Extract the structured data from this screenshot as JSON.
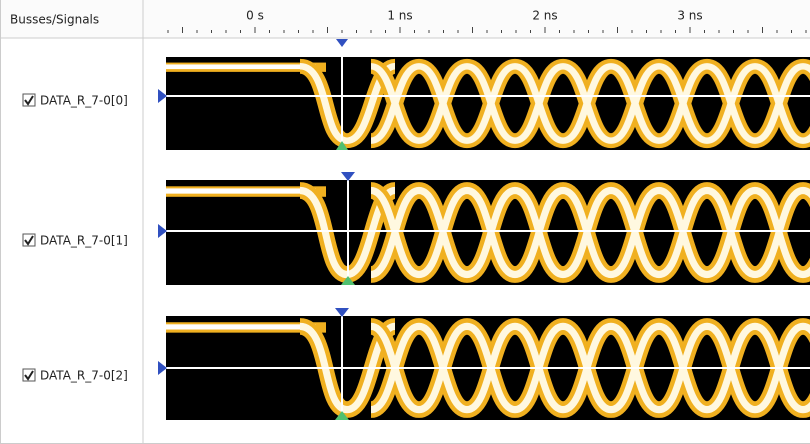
{
  "header": {
    "title": "Busses/Signals",
    "time_labels": [
      "0 s",
      "1 ns",
      "2 ns",
      "3 ns"
    ]
  },
  "signals": [
    "DATA_R_7-0[0]",
    "DATA_R_7-0[1]",
    "DATA_R_7-0[2]"
  ]
}
